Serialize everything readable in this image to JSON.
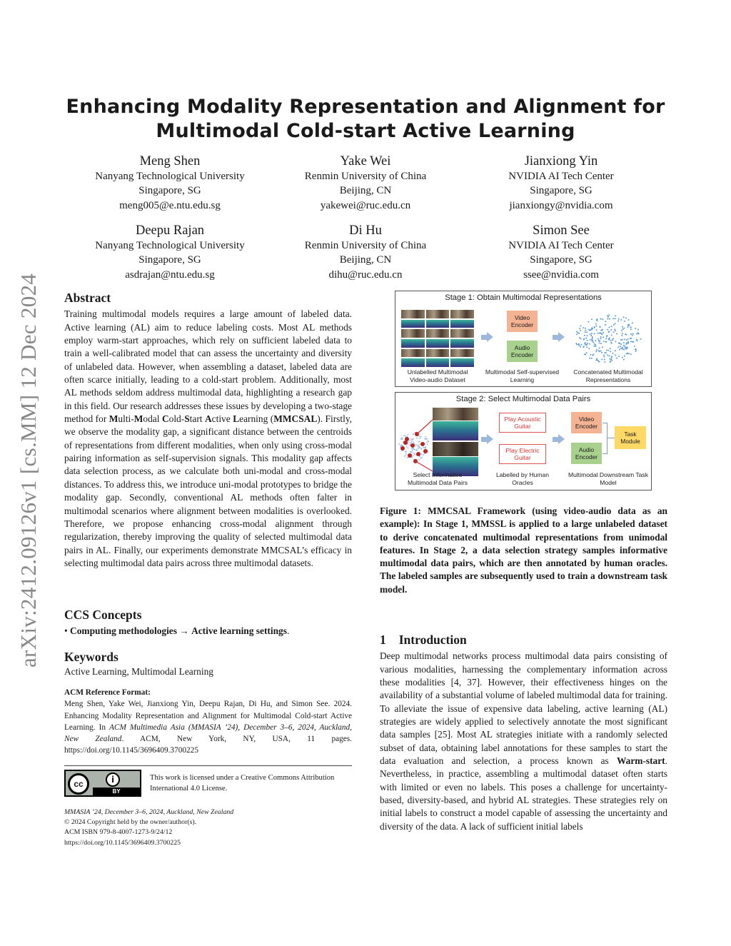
{
  "arxiv_id": "arXiv:2412.09126v1  [cs.MM]  12 Dec 2024",
  "title": {
    "line1": "Enhancing Modality Representation and Alignment for",
    "line2": "Multimodal Cold-start Active Learning"
  },
  "authors": [
    {
      "name": "Meng Shen",
      "affiliation": "Nanyang Technological University",
      "location": "Singapore, SG",
      "email": "meng005@e.ntu.edu.sg"
    },
    {
      "name": "Yake Wei",
      "affiliation": "Renmin University of China",
      "location": "Beijing, CN",
      "email": "yakewei@ruc.edu.cn"
    },
    {
      "name": "Jianxiong Yin",
      "affiliation": "NVIDIA AI Tech Center",
      "location": "Singapore, SG",
      "email": "jianxiongy@nvidia.com"
    },
    {
      "name": "Deepu Rajan",
      "affiliation": "Nanyang Technological University",
      "location": "Singapore, SG",
      "email": "asdrajan@ntu.edu.sg"
    },
    {
      "name": "Di Hu",
      "affiliation": "Renmin University of China",
      "location": "Beijing, CN",
      "email": "dihu@ruc.edu.cn"
    },
    {
      "name": "Simon See",
      "affiliation": "NVIDIA AI Tech Center",
      "location": "Singapore, SG",
      "email": "ssee@nvidia.com"
    }
  ],
  "abstract": {
    "heading": "Abstract",
    "p1": "Training multimodal models requires a large amount of labeled data. Active learning (AL) aim to reduce labeling costs. Most AL methods employ warm-start approaches, which rely on sufficient labeled data to train a well-calibrated model that can assess the uncertainty and diversity of unlabeled data. However, when assembling a dataset, labeled data are often scarce initially, leading to a cold-start problem. Additionally, most AL methods seldom address multimodal data, highlighting a research gap in this field. Our research addresses these issues by developing a two-stage method for ",
    "b1": "M",
    "t1": "ulti-",
    "b2": "M",
    "t2": "odal ",
    "b3": "C",
    "t3": "old-",
    "b4": "S",
    "t4": "tart ",
    "b5": "A",
    "t5": "ctive ",
    "b6": "L",
    "t6": "earning (",
    "b7": "MMCSAL",
    "p2": "). Firstly, we observe the modality gap, a significant distance between the centroids of representations from different modalities, when only using cross-modal pairing information as self-supervision signals. This modality gap affects data selection process, as we calculate both uni-modal and cross-modal distances. To address this, we introduce uni-modal prototypes to bridge the modality gap. Secondly, conventional AL methods often falter in multimodal scenarios where alignment between modalities is overlooked. Therefore, we propose enhancing cross-modal alignment through regularization, thereby improving the quality of selected multimodal data pairs in AL. Finally, our experiments demonstrate MMCSAL’s efficacy in selecting multimodal data pairs across three multimodal datasets."
  },
  "ccs": {
    "heading": "CCS Concepts",
    "bullet": "• ",
    "item": "Computing methodologies",
    "arrow": " → ",
    "leaf": "Active learning settings",
    "end": "."
  },
  "keywords": {
    "heading": "Keywords",
    "text": "Active Learning, Multimodal Learning"
  },
  "reference": {
    "heading": "ACM Reference Format:",
    "text1": "Meng Shen, Yake Wei, Jianxiong Yin, Deepu Rajan, Di Hu, and Simon See. 2024. Enhancing Modality Representation and Alignment for Multimodal Cold-start Active Learning. In ",
    "venue": "ACM Multimedia Asia (MMASIA ’24), December 3–6, 2024, Auckland, New Zealand",
    "text2": ". ACM, New York, NY, USA, 11 pages. https://doi.org/10.1145/3696409.3700225"
  },
  "license": {
    "badge_cc": "cc",
    "badge_by": "BY",
    "text": "This work is licensed under a Creative Commons Attribution International 4.0 License."
  },
  "footer": {
    "conf": "MMASIA ’24, December 3–6, 2024, Auckland, New Zealand",
    "copyright": "© 2024 Copyright held by the owner/author(s).",
    "isbn": "ACM ISBN 979-8-4007-1273-9/24/12",
    "doi": "https://doi.org/10.1145/3696409.3700225"
  },
  "figure": {
    "stage1": {
      "title": "Stage 1: Obtain Multimodal Representations",
      "video_encoder": "Video Encoder",
      "audio_encoder": "Audio Encoder",
      "cap1": "Unlabelled Multimodal Video-audio Dataset",
      "cap2": "Multimodal Self-supervised Learning",
      "cap3": "Concatenated Multimodal Representations"
    },
    "stage2": {
      "title": "Stage 2: Select Multimodal Data Pairs",
      "label1": "Play Acoustic Guitar",
      "label2": "Play Electric Guitar",
      "video_encoder": "Video Encoder",
      "audio_encoder": "Audio Encoder",
      "task": "Task Module",
      "cap1": "Select Informative Multimodal Data Pairs",
      "cap2": "Labelled by Human Oracles",
      "cap3": "Multimodal Downstream Task Model"
    },
    "caption_label": "Figure 1: ",
    "caption": "MMCSAL Framework (using video-audio data as an example): In Stage 1, MMSSL is applied to a large unlabeled dataset to derive concatenated multimodal representations from unimodal features. In Stage 2, a data selection strategy samples informative multimodal data pairs, which are then annotated by human oracles. The labeled samples are subsequently used to train a downstream task model."
  },
  "intro": {
    "number": "1",
    "heading": "Introduction",
    "p1": "Deep multimodal networks process multimodal data pairs consisting of various modalities, harnessing the complementary information across these modalities [4, 37]. However, their effectiveness hinges on the availability of a substantial volume of labeled multimodal data for training. To alleviate the issue of expensive data labeling, active learning (AL) strategies are widely applied to selectively annotate the most significant data samples [25]. Most AL strategies initiate with a randomly selected subset of data, obtaining label annotations for these samples to start the data evaluation and selection, a process known as ",
    "bold": "Warm-start",
    "p2": ". Nevertheless, in practice, assembling a multimodal dataset often starts with limited or even no labels. This poses a challenge for uncertainty-based, diversity-based, and hybrid AL strategies. These strategies rely on initial labels to construct a model capable of assessing the uncertainty and diversity of the data. A lack of sufficient initial labels"
  },
  "colors": {
    "video_encoder": "#f4b393",
    "audio_encoder": "#a9d18e",
    "task_module": "#ffd966",
    "label_border": "#dd5555",
    "arrow": "#9db8dd",
    "arxiv": "#888888"
  }
}
